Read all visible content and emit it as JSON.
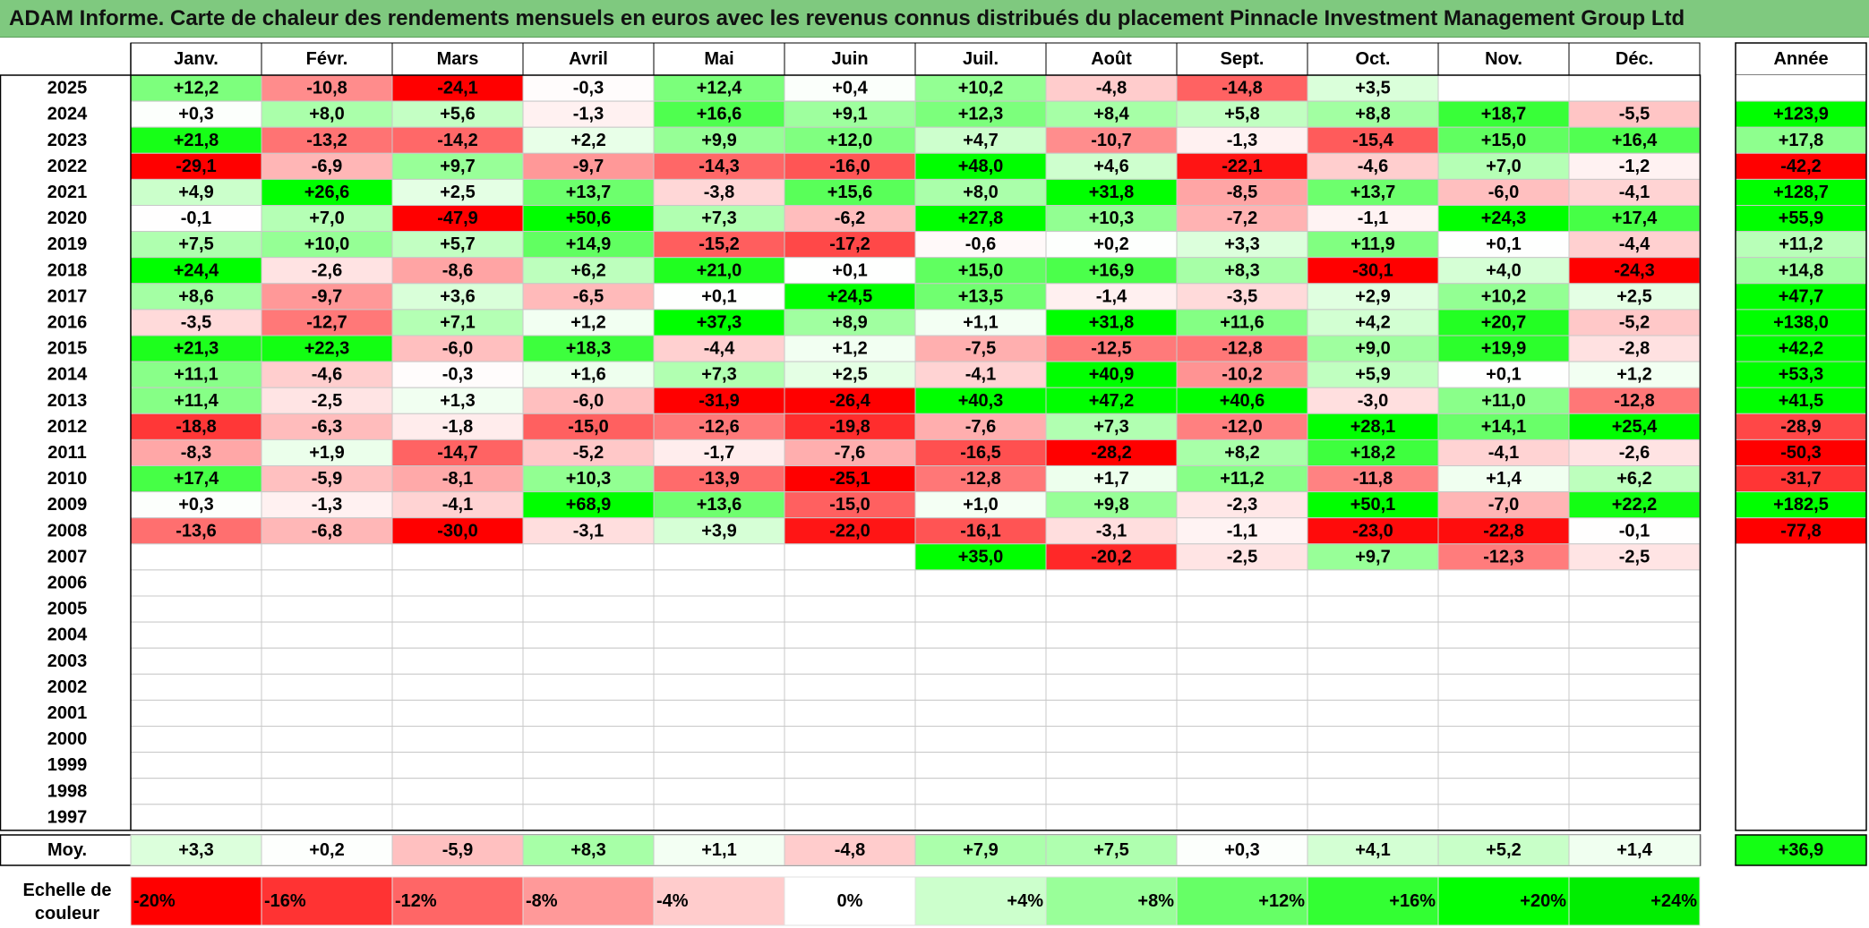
{
  "title": "ADAM Informe. Carte de chaleur des rendements mensuels en euros avec les revenus connus distribués du placement Pinnacle Investment Management Group Ltd",
  "chart_data": {
    "type": "heatmap",
    "months": [
      "Janv.",
      "Févr.",
      "Mars",
      "Avril",
      "Mai",
      "Juin",
      "Juil.",
      "Août",
      "Sept.",
      "Oct.",
      "Nov.",
      "Déc."
    ],
    "year_header": "Année",
    "years": [
      "2025",
      "2024",
      "2023",
      "2022",
      "2021",
      "2020",
      "2019",
      "2018",
      "2017",
      "2016",
      "2015",
      "2014",
      "2013",
      "2012",
      "2011",
      "2010",
      "2009",
      "2008",
      "2007",
      "2006",
      "2005",
      "2004",
      "2003",
      "2002",
      "2001",
      "2000",
      "1999",
      "1998",
      "1997"
    ],
    "values": [
      [
        12.2,
        -10.8,
        -24.1,
        -0.3,
        12.4,
        0.4,
        10.2,
        -4.8,
        -14.8,
        3.5,
        null,
        null
      ],
      [
        0.3,
        8.0,
        5.6,
        -1.3,
        16.6,
        9.1,
        12.3,
        8.4,
        5.8,
        8.8,
        18.7,
        -5.5
      ],
      [
        21.8,
        -13.2,
        -14.2,
        2.2,
        9.9,
        12.0,
        4.7,
        -10.7,
        -1.3,
        -15.4,
        15.0,
        16.4
      ],
      [
        -29.1,
        -6.9,
        9.7,
        -9.7,
        -14.3,
        -16.0,
        48.0,
        4.6,
        -22.1,
        -4.6,
        7.0,
        -1.2
      ],
      [
        4.9,
        26.6,
        2.5,
        13.7,
        -3.8,
        15.6,
        8.0,
        31.8,
        -8.5,
        13.7,
        -6.0,
        -4.1
      ],
      [
        -0.1,
        7.0,
        -47.9,
        50.6,
        7.3,
        -6.2,
        27.8,
        10.3,
        -7.2,
        -1.1,
        24.3,
        17.4
      ],
      [
        7.5,
        10.0,
        5.7,
        14.9,
        -15.2,
        -17.2,
        -0.6,
        0.2,
        3.3,
        11.9,
        0.1,
        -4.4
      ],
      [
        24.4,
        -2.6,
        -8.6,
        6.2,
        21.0,
        0.1,
        15.0,
        16.9,
        8.3,
        -30.1,
        4.0,
        -24.3
      ],
      [
        8.6,
        -9.7,
        3.6,
        -6.5,
        0.1,
        24.5,
        13.5,
        -1.4,
        -3.5,
        2.9,
        10.2,
        2.5
      ],
      [
        -3.5,
        -12.7,
        7.1,
        1.2,
        37.3,
        8.9,
        1.1,
        31.8,
        11.6,
        4.2,
        20.7,
        -5.2
      ],
      [
        21.3,
        22.3,
        -6.0,
        18.3,
        -4.4,
        1.2,
        -7.5,
        -12.5,
        -12.8,
        9.0,
        19.9,
        -2.8
      ],
      [
        11.1,
        -4.6,
        -0.3,
        1.6,
        7.3,
        2.5,
        -4.1,
        40.9,
        -10.2,
        5.9,
        0.1,
        1.2
      ],
      [
        11.4,
        -2.5,
        1.3,
        -6.0,
        -31.9,
        -26.4,
        40.3,
        47.2,
        40.6,
        -3.0,
        11.0,
        -12.8
      ],
      [
        -18.8,
        -6.3,
        -1.8,
        -15.0,
        -12.6,
        -19.8,
        -7.6,
        7.3,
        -12.0,
        28.1,
        14.1,
        25.4
      ],
      [
        -8.3,
        1.9,
        -14.7,
        -5.2,
        -1.7,
        -7.6,
        -16.5,
        -28.2,
        8.2,
        18.2,
        -4.1,
        -2.6
      ],
      [
        17.4,
        -5.9,
        -8.1,
        10.3,
        -13.9,
        -25.1,
        -12.8,
        1.7,
        11.2,
        -11.8,
        1.4,
        6.2
      ],
      [
        0.3,
        -1.3,
        -4.1,
        68.9,
        13.6,
        -15.0,
        1.0,
        9.8,
        -2.3,
        50.1,
        -7.0,
        22.2
      ],
      [
        -13.6,
        -6.8,
        -30.0,
        -3.1,
        3.9,
        -22.0,
        -16.1,
        -3.1,
        -1.1,
        -23.0,
        -22.8,
        -0.1
      ],
      [
        null,
        null,
        null,
        null,
        null,
        null,
        35.0,
        -20.2,
        -2.5,
        9.7,
        -12.3,
        -2.5
      ],
      [
        null,
        null,
        null,
        null,
        null,
        null,
        null,
        null,
        null,
        null,
        null,
        null
      ],
      [
        null,
        null,
        null,
        null,
        null,
        null,
        null,
        null,
        null,
        null,
        null,
        null
      ],
      [
        null,
        null,
        null,
        null,
        null,
        null,
        null,
        null,
        null,
        null,
        null,
        null
      ],
      [
        null,
        null,
        null,
        null,
        null,
        null,
        null,
        null,
        null,
        null,
        null,
        null
      ],
      [
        null,
        null,
        null,
        null,
        null,
        null,
        null,
        null,
        null,
        null,
        null,
        null
      ],
      [
        null,
        null,
        null,
        null,
        null,
        null,
        null,
        null,
        null,
        null,
        null,
        null
      ],
      [
        null,
        null,
        null,
        null,
        null,
        null,
        null,
        null,
        null,
        null,
        null,
        null
      ],
      [
        null,
        null,
        null,
        null,
        null,
        null,
        null,
        null,
        null,
        null,
        null,
        null
      ],
      [
        null,
        null,
        null,
        null,
        null,
        null,
        null,
        null,
        null,
        null,
        null,
        null
      ],
      [
        null,
        null,
        null,
        null,
        null,
        null,
        null,
        null,
        null,
        null,
        null,
        null
      ]
    ],
    "annual": [
      null,
      123.9,
      17.8,
      -42.2,
      128.7,
      55.9,
      11.2,
      14.8,
      47.7,
      138.0,
      42.2,
      53.3,
      41.5,
      -28.9,
      -50.3,
      -31.7,
      182.5,
      -77.8,
      null,
      null,
      null,
      null,
      null,
      null,
      null,
      null,
      null,
      null,
      null
    ],
    "average_label": "Moy.",
    "averages": [
      3.3,
      0.2,
      -5.9,
      8.3,
      1.1,
      -4.8,
      7.9,
      7.5,
      0.3,
      4.1,
      5.2,
      1.4
    ],
    "average_annual": 36.9,
    "scale_label_line1": "Echelle de",
    "scale_label_line2": "couleur",
    "scale": [
      {
        "label": "-20%",
        "color": "#ff0000"
      },
      {
        "label": "-16%",
        "color": "#ff3333"
      },
      {
        "label": "-12%",
        "color": "#ff6666"
      },
      {
        "label": "-8%",
        "color": "#ff9999"
      },
      {
        "label": "-4%",
        "color": "#ffcccc"
      },
      {
        "label": "0%",
        "color": "#ffffff"
      },
      {
        "label": "+4%",
        "color": "#ccffcc"
      },
      {
        "label": "+8%",
        "color": "#99ff99"
      },
      {
        "label": "+12%",
        "color": "#66ff66"
      },
      {
        "label": "+16%",
        "color": "#33ff33"
      },
      {
        "label": "+20%",
        "color": "#00ff00"
      },
      {
        "label": "+24%",
        "color": "#00ee00"
      }
    ],
    "colors": {
      "negative_max": "#ff0000",
      "neutral": "#ffffff",
      "positive_max": "#00ff00",
      "title_bar": "#7fc97f"
    }
  }
}
